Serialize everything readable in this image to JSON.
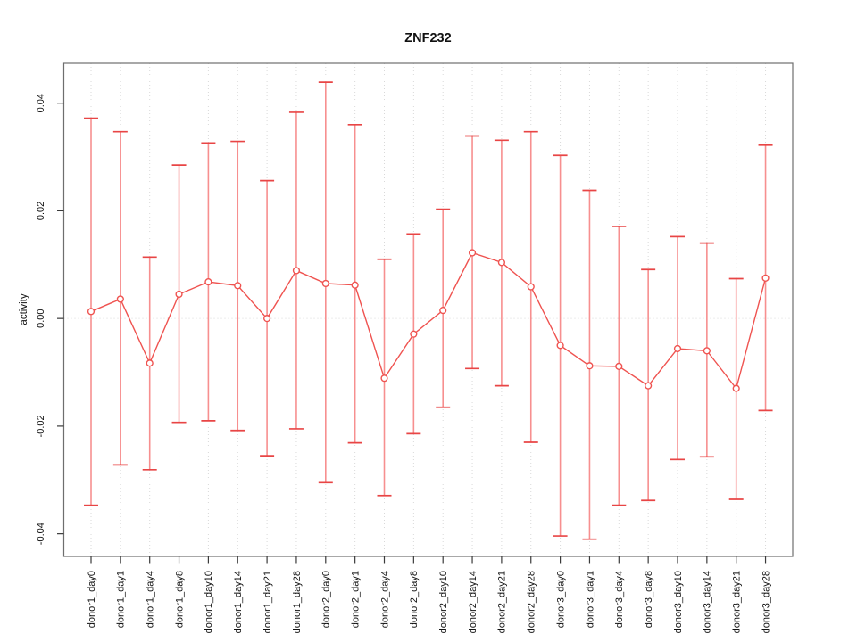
{
  "chart_data": {
    "type": "line",
    "title": "ZNF232",
    "xlabel": "",
    "ylabel": "activity",
    "categories": [
      "donor1_day0",
      "donor1_day1",
      "donor1_day4",
      "donor1_day8",
      "donor1_day10",
      "donor1_day14",
      "donor1_day21",
      "donor1_day28",
      "donor2_day0",
      "donor2_day1",
      "donor2_day4",
      "donor2_day8",
      "donor2_day10",
      "donor2_day14",
      "donor2_day21",
      "donor2_day28",
      "donor3_day0",
      "donor3_day1",
      "donor3_day4",
      "donor3_day8",
      "donor3_day10",
      "donor3_day14",
      "donor3_day21",
      "donor3_day28"
    ],
    "values": [
      0.0013,
      0.0036,
      -0.0083,
      0.0045,
      0.0068,
      0.0061,
      0.0,
      0.0089,
      0.0065,
      0.0062,
      -0.0111,
      -0.0029,
      0.0015,
      0.0122,
      0.0104,
      0.0059,
      -0.005,
      -0.0088,
      -0.0089,
      -0.0125,
      -0.0056,
      -0.006,
      -0.013,
      0.0075
    ],
    "error_low": [
      -0.0347,
      -0.0272,
      -0.0281,
      -0.0193,
      -0.019,
      -0.0208,
      -0.0255,
      -0.0205,
      -0.0305,
      -0.0231,
      -0.0329,
      -0.0214,
      -0.0165,
      -0.0093,
      -0.0125,
      -0.023,
      -0.0404,
      -0.041,
      -0.0347,
      -0.0338,
      -0.0262,
      -0.0257,
      -0.0336,
      -0.0171
    ],
    "error_high": [
      0.0372,
      0.0347,
      0.0114,
      0.0285,
      0.0326,
      0.0329,
      0.0256,
      0.0383,
      0.0439,
      0.036,
      0.011,
      0.0157,
      0.0203,
      0.0339,
      0.0331,
      0.0347,
      0.0303,
      0.0238,
      0.0171,
      0.0091,
      0.0152,
      0.014,
      0.0074,
      0.0322
    ],
    "ylim": [
      -0.0442,
      0.0474
    ],
    "yticks": [
      -0.04,
      -0.02,
      0,
      0.02,
      0.04
    ],
    "ytick_labels": [
      "-0.04",
      "-0.02",
      "0.00",
      "0.02",
      "0.04"
    ],
    "grid": {
      "vertical_dotted_per_category": true,
      "horizontal_dotted_at_zero": true,
      "legend": "none"
    },
    "marker": "open-circle",
    "colors": {
      "point": "#ef5350",
      "line": "#ef5350",
      "error_stem": "#f78f8f",
      "error_cap": "#e84545",
      "grid": "#d9d9d9",
      "box": "#6e6e6e",
      "tick": "#3a3a3a",
      "text": "#111111"
    }
  }
}
